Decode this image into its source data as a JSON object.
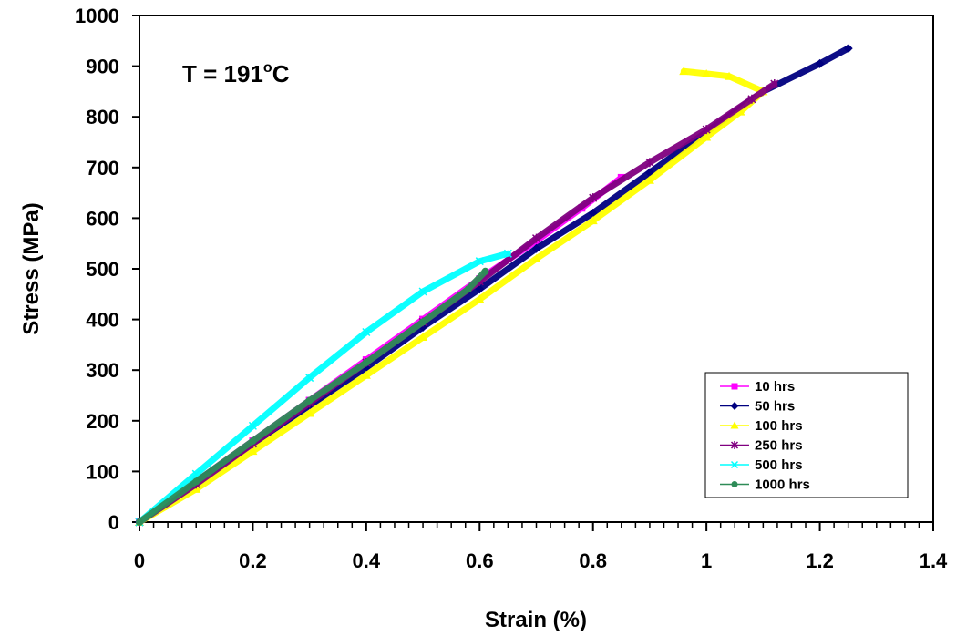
{
  "chart_data": {
    "type": "line",
    "title": "",
    "xlabel": "Strain (%)",
    "ylabel": "Stress (MPa)",
    "xlim": [
      0,
      1.4
    ],
    "ylim": [
      0,
      1000
    ],
    "xticks": [
      0,
      0.2,
      0.4,
      0.6,
      0.8,
      1,
      1.2,
      1.4
    ],
    "xtick_labels": [
      "0",
      "0.2",
      "0.4",
      "0.6",
      "0.8",
      "1",
      "1.2",
      "1.4"
    ],
    "yticks": [
      0,
      100,
      200,
      300,
      400,
      500,
      600,
      700,
      800,
      900,
      1000
    ],
    "ytick_labels": [
      "0",
      "100",
      "200",
      "300",
      "400",
      "500",
      "600",
      "700",
      "800",
      "900",
      "1000"
    ],
    "grid": false,
    "legend_position": "bottom-right",
    "annotation": {
      "text": "T = 191",
      "sup": "o",
      "suffix": "C"
    },
    "series": [
      {
        "name": "10 hrs",
        "color": "#ff00ff",
        "marker": "square",
        "x": [
          0,
          0.1,
          0.2,
          0.3,
          0.4,
          0.5,
          0.6,
          0.7,
          0.78,
          0.85
        ],
        "y": [
          0,
          80,
          160,
          240,
          320,
          400,
          480,
          555,
          620,
          680
        ]
      },
      {
        "name": "50 hrs",
        "color": "#000080",
        "marker": "diamond",
        "x": [
          0,
          0.1,
          0.2,
          0.3,
          0.4,
          0.5,
          0.6,
          0.7,
          0.8,
          0.9,
          1.0,
          1.1,
          1.2,
          1.25
        ],
        "y": [
          0,
          80,
          155,
          230,
          305,
          385,
          460,
          540,
          610,
          690,
          770,
          850,
          905,
          935
        ]
      },
      {
        "name": "100 hrs",
        "color": "#ffff00",
        "marker": "triangle",
        "x": [
          0,
          0.1,
          0.2,
          0.3,
          0.4,
          0.5,
          0.6,
          0.7,
          0.8,
          0.9,
          1.0,
          1.06,
          1.1,
          1.04,
          1.0,
          0.96
        ],
        "y": [
          0,
          65,
          140,
          215,
          290,
          365,
          440,
          520,
          595,
          675,
          760,
          810,
          850,
          880,
          885,
          890
        ]
      },
      {
        "name": "250 hrs",
        "color": "#800080",
        "marker": "star",
        "x": [
          0,
          0.1,
          0.2,
          0.3,
          0.4,
          0.5,
          0.6,
          0.7,
          0.8,
          0.9,
          1.0,
          1.08,
          1.12
        ],
        "y": [
          0,
          75,
          155,
          235,
          315,
          395,
          475,
          560,
          640,
          710,
          775,
          835,
          865
        ]
      },
      {
        "name": "500 hrs",
        "color": "#00ffff",
        "marker": "x",
        "x": [
          0,
          0.1,
          0.2,
          0.3,
          0.4,
          0.5,
          0.6,
          0.65
        ],
        "y": [
          0,
          95,
          190,
          285,
          375,
          455,
          515,
          530
        ]
      },
      {
        "name": "1000 hrs",
        "color": "#2e8b57",
        "marker": "circle",
        "x": [
          0,
          0.1,
          0.2,
          0.3,
          0.4,
          0.5,
          0.58,
          0.61
        ],
        "y": [
          0,
          80,
          160,
          240,
          315,
          395,
          460,
          495
        ]
      }
    ]
  }
}
